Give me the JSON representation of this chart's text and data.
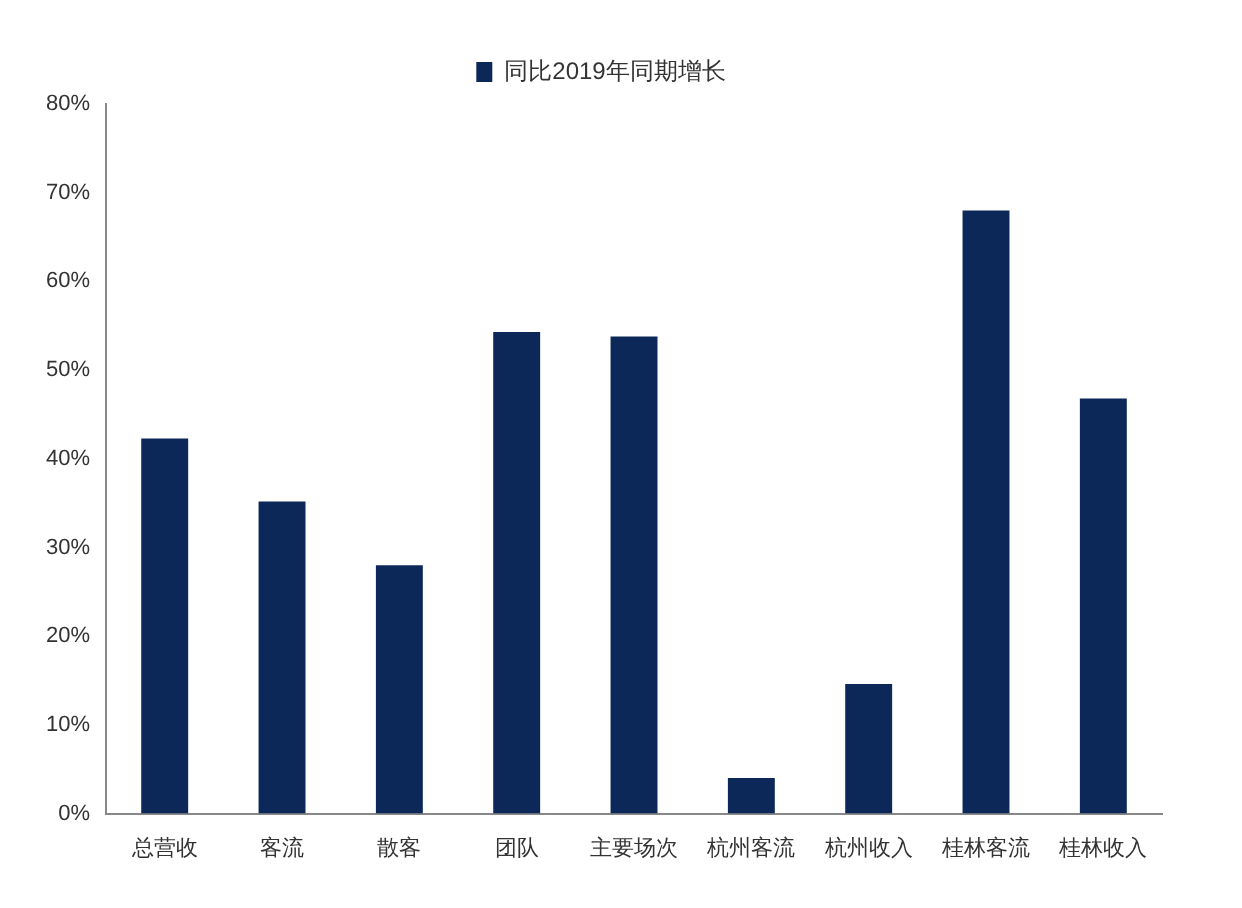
{
  "chart_data": {
    "type": "bar",
    "categories": [
      "总营收",
      "客流",
      "散客",
      "团队",
      "主要场次",
      "杭州客流",
      "杭州收入",
      "桂林客流",
      "桂林收入"
    ],
    "series": [
      {
        "name": "同比2019年同期增长",
        "color": "#0c2858",
        "values": [
          42.3,
          35.2,
          28,
          54.3,
          53.8,
          4,
          14.6,
          68,
          46.8
        ]
      }
    ],
    "ylim": [
      0,
      80
    ],
    "yticks": [
      {
        "value": 0,
        "label": "0%"
      },
      {
        "value": 10,
        "label": "10%"
      },
      {
        "value": 20,
        "label": "20%"
      },
      {
        "value": 30,
        "label": "30%"
      },
      {
        "value": 40,
        "label": "40%"
      },
      {
        "value": 50,
        "label": "50%"
      },
      {
        "value": 60,
        "label": "60%"
      },
      {
        "value": 70,
        "label": "70%"
      },
      {
        "value": 80,
        "label": "80%"
      }
    ],
    "grid": false,
    "legend": "top"
  }
}
